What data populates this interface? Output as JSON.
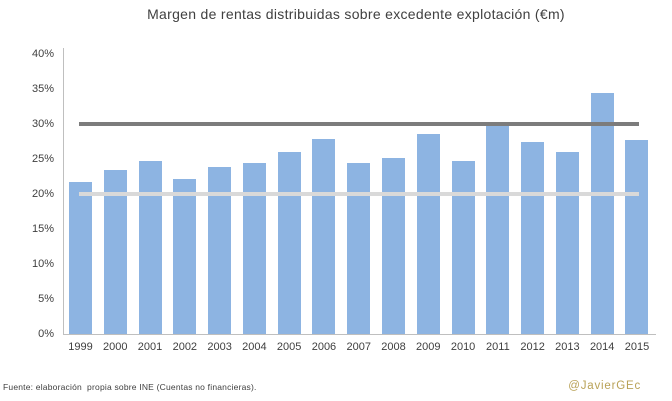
{
  "title": "Margen de rentas distribuidas sobre excedente explotación (€m)",
  "footer": {
    "source": "Fuente: elaboración  propia sobre INE (Cuentas no financieras).",
    "credit": "@JavierGEc"
  },
  "colors": {
    "bar": "#8DB4E2",
    "reference_line_dark": "#7C7C7C",
    "reference_line_light": "#D9D9D9",
    "axis": "#BFBFBF",
    "text": "#404040",
    "credit": "#B9A257"
  },
  "chart_data": {
    "type": "bar",
    "title": "Margen de rentas distribuidas sobre excedente explotación (€m)",
    "categories": [
      "1999",
      "2000",
      "2001",
      "2002",
      "2003",
      "2004",
      "2005",
      "2006",
      "2007",
      "2008",
      "2009",
      "2010",
      "2011",
      "2012",
      "2013",
      "2014",
      "2015"
    ],
    "values": [
      21.7,
      23.4,
      24.7,
      22.2,
      23.8,
      24.5,
      26.0,
      27.8,
      24.4,
      25.2,
      28.6,
      24.7,
      29.9,
      27.5,
      26.0,
      34.5,
      27.7
    ],
    "unit": "%",
    "xlabel": "",
    "ylabel": "",
    "ylim": [
      0,
      40
    ],
    "y_ticks": [
      0,
      5,
      10,
      15,
      20,
      25,
      30,
      35,
      40
    ],
    "y_tick_labels": [
      "0%",
      "5%",
      "10%",
      "15%",
      "20%",
      "25%",
      "30%",
      "35%",
      "40%"
    ],
    "reference_lines": [
      {
        "value": 30,
        "color": "#7C7C7C",
        "thickness": 4,
        "name": "reference-line-30pct"
      },
      {
        "value": 20,
        "color": "#D9D9D9",
        "thickness": 4,
        "name": "reference-line-20pct"
      }
    ],
    "grid": false,
    "legend": false,
    "bar_color": "#8DB4E2"
  }
}
